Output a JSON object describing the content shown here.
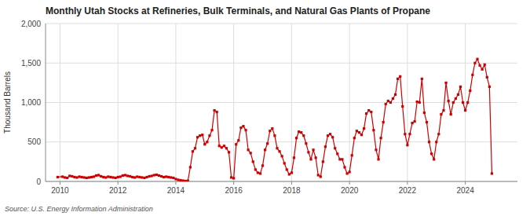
{
  "chart_data": {
    "type": "line",
    "title": "Monthly Utah Stocks at Refineries, Bulk Terminals, and Natural Gas Plants of Propane",
    "ylabel": "Thousand Barrels",
    "annotations": [
      "Source: U.S. Energy Information Administration"
    ],
    "color": "#cc0000",
    "marker": "square",
    "grid": true,
    "xlim": [
      2009.5,
      2025.8
    ],
    "xticks": [
      2010,
      2012,
      2014,
      2016,
      2018,
      2020,
      2022,
      2024
    ],
    "ylim": [
      0,
      2000
    ],
    "yticks": [
      0,
      500,
      {
        "value": 1000,
        "label": "1,000"
      },
      {
        "value": 1500,
        "label": "1,500"
      },
      {
        "value": 2000,
        "label": "2,000"
      }
    ],
    "x": [
      2009.917,
      2010.083,
      2010.167,
      2010.25,
      2010.333,
      2010.417,
      2010.5,
      2010.583,
      2010.667,
      2010.75,
      2010.833,
      2010.917,
      2011.0,
      2011.083,
      2011.167,
      2011.25,
      2011.333,
      2011.417,
      2011.5,
      2011.583,
      2011.667,
      2011.75,
      2011.833,
      2011.917,
      2012.0,
      2012.083,
      2012.167,
      2012.25,
      2012.333,
      2012.417,
      2012.5,
      2012.583,
      2012.667,
      2012.75,
      2012.833,
      2012.917,
      2013.0,
      2013.083,
      2013.167,
      2013.25,
      2013.333,
      2013.417,
      2013.5,
      2013.583,
      2013.667,
      2013.75,
      2013.833,
      2013.917,
      2014.0,
      2014.083,
      2014.167,
      2014.25,
      2014.333,
      2014.417,
      2014.5,
      2014.583,
      2014.667,
      2014.75,
      2014.833,
      2014.917,
      2015.0,
      2015.083,
      2015.167,
      2015.25,
      2015.333,
      2015.417,
      2015.5,
      2015.583,
      2015.667,
      2015.75,
      2015.833,
      2015.917,
      2016.0,
      2016.083,
      2016.167,
      2016.25,
      2016.333,
      2016.417,
      2016.5,
      2016.583,
      2016.667,
      2016.75,
      2016.833,
      2016.917,
      2017.0,
      2017.083,
      2017.167,
      2017.25,
      2017.333,
      2017.417,
      2017.5,
      2017.583,
      2017.667,
      2017.75,
      2017.833,
      2017.917,
      2018.0,
      2018.083,
      2018.167,
      2018.25,
      2018.333,
      2018.417,
      2018.5,
      2018.583,
      2018.667,
      2018.75,
      2018.833,
      2018.917,
      2019.0,
      2019.083,
      2019.167,
      2019.25,
      2019.333,
      2019.417,
      2019.5,
      2019.583,
      2019.667,
      2019.75,
      2019.833,
      2019.917,
      2020.0,
      2020.083,
      2020.167,
      2020.25,
      2020.333,
      2020.417,
      2020.5,
      2020.583,
      2020.667,
      2020.75,
      2020.833,
      2020.917,
      2021.0,
      2021.083,
      2021.167,
      2021.25,
      2021.333,
      2021.417,
      2021.5,
      2021.583,
      2021.667,
      2021.75,
      2021.833,
      2021.917,
      2022.0,
      2022.083,
      2022.167,
      2022.25,
      2022.333,
      2022.417,
      2022.5,
      2022.583,
      2022.667,
      2022.75,
      2022.833,
      2022.917,
      2023.0,
      2023.083,
      2023.167,
      2023.25,
      2023.333,
      2023.417,
      2023.5,
      2023.583,
      2023.667,
      2023.75,
      2023.833,
      2023.917,
      2024.0,
      2024.083,
      2024.167,
      2024.25,
      2024.333,
      2024.417,
      2024.5,
      2024.583,
      2024.667,
      2024.75,
      2024.833,
      2024.917
    ],
    "values": [
      55,
      60,
      50,
      45,
      70,
      65,
      55,
      50,
      60,
      55,
      50,
      45,
      50,
      55,
      60,
      75,
      80,
      65,
      55,
      50,
      60,
      55,
      50,
      45,
      55,
      60,
      75,
      80,
      70,
      65,
      55,
      50,
      60,
      55,
      50,
      45,
      55,
      65,
      70,
      80,
      85,
      75,
      65,
      55,
      60,
      55,
      50,
      45,
      30,
      20,
      15,
      10,
      5,
      8,
      180,
      380,
      420,
      560,
      580,
      590,
      470,
      500,
      580,
      650,
      900,
      880,
      450,
      430,
      450,
      420,
      370,
      50,
      40,
      470,
      520,
      680,
      700,
      650,
      400,
      360,
      250,
      150,
      110,
      100,
      200,
      400,
      480,
      640,
      670,
      580,
      420,
      380,
      320,
      230,
      150,
      90,
      110,
      300,
      550,
      630,
      620,
      580,
      480,
      370,
      280,
      400,
      300,
      80,
      60,
      250,
      440,
      580,
      600,
      560,
      420,
      350,
      280,
      280,
      180,
      100,
      120,
      330,
      550,
      640,
      620,
      590,
      670,
      860,
      900,
      880,
      650,
      400,
      280,
      550,
      750,
      980,
      1020,
      1000,
      1050,
      1100,
      1300,
      1330,
      950,
      600,
      460,
      600,
      740,
      760,
      1010,
      1000,
      1300,
      870,
      750,
      500,
      350,
      280,
      500,
      600,
      850,
      900,
      1250,
      1020,
      850,
      1000,
      1050,
      1100,
      1200,
      1000,
      900,
      1000,
      1150,
      1350,
      1500,
      1550,
      1470,
      1420,
      1480,
      1320,
      1200,
      100
    ]
  }
}
